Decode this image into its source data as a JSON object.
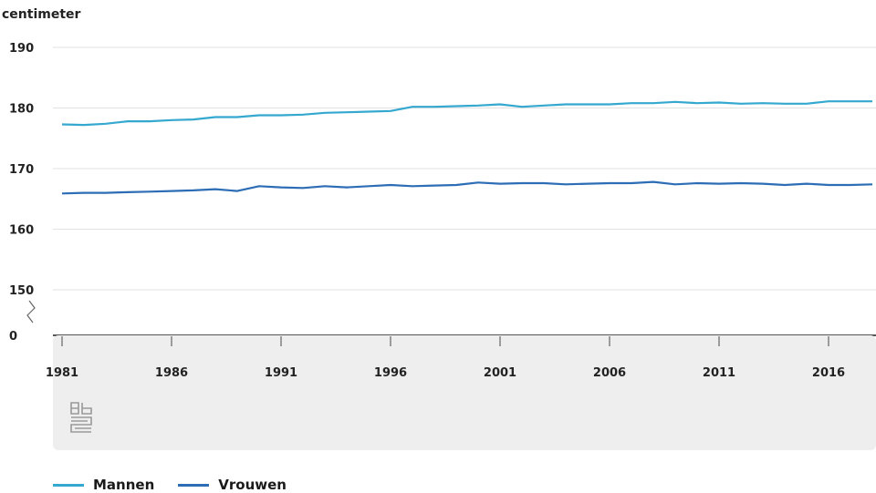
{
  "chart_data": {
    "type": "line",
    "ylabel": "centimeter",
    "x": [
      1981,
      1982,
      1983,
      1984,
      1985,
      1986,
      1987,
      1988,
      1989,
      1990,
      1991,
      1992,
      1993,
      1994,
      1995,
      1996,
      1997,
      1998,
      1999,
      2000,
      2001,
      2002,
      2003,
      2004,
      2005,
      2006,
      2007,
      2008,
      2009,
      2010,
      2011,
      2012,
      2013,
      2014,
      2015,
      2016,
      2017,
      2018
    ],
    "series": [
      {
        "name": "Mannen",
        "color": "#35a8cf",
        "values": [
          177.3,
          177.2,
          177.4,
          177.8,
          177.8,
          178.0,
          178.1,
          178.5,
          178.5,
          178.8,
          178.8,
          178.9,
          179.2,
          179.3,
          179.4,
          179.5,
          180.2,
          180.2,
          180.3,
          180.4,
          180.6,
          180.2,
          180.4,
          180.6,
          180.6,
          180.6,
          180.8,
          180.8,
          181.0,
          180.8,
          180.9,
          180.7,
          180.8,
          180.7,
          180.7,
          181.1,
          181.1,
          181.1
        ]
      },
      {
        "name": "Vrouwen",
        "color": "#2d6db5",
        "values": [
          165.9,
          166.0,
          166.0,
          166.1,
          166.2,
          166.3,
          166.4,
          166.6,
          166.3,
          167.1,
          166.9,
          166.8,
          167.1,
          166.9,
          167.1,
          167.3,
          167.1,
          167.2,
          167.3,
          167.7,
          167.5,
          167.6,
          167.6,
          167.4,
          167.5,
          167.6,
          167.6,
          167.8,
          167.4,
          167.6,
          167.5,
          167.6,
          167.5,
          167.3,
          167.5,
          167.3,
          167.3,
          167.4
        ]
      }
    ],
    "yticks": [
      "190",
      "180",
      "170",
      "160",
      "150",
      "0"
    ],
    "ylim": [
      150,
      190
    ],
    "y_axis_break": true,
    "xticks": [
      "1981",
      "1986",
      "1991",
      "1996",
      "2001",
      "2006",
      "2011",
      "2016"
    ],
    "grid": true,
    "legend_position": "bottom-left",
    "watermark": "cbs-logo-icon"
  }
}
